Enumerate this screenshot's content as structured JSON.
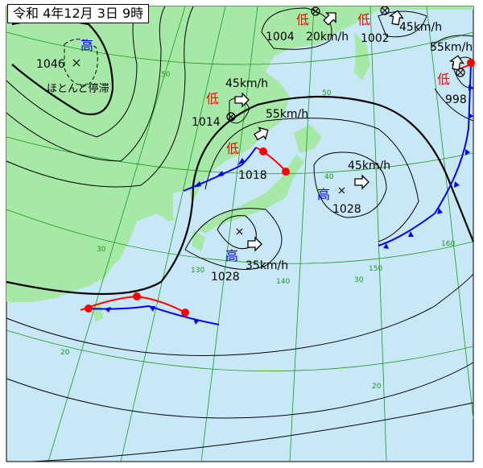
{
  "title": "令和 4年12月 3日 9時",
  "colors": {
    "sea": "#c8e8f8",
    "land": "#a6e8a6",
    "grid": "#1a9a1a",
    "high": "#0000ff",
    "low": "#ff0000",
    "warm_front": "#ff0000",
    "cold_front": "#0000ff"
  },
  "systems": [
    {
      "type": "high",
      "symbol": "高",
      "pressure": "1046",
      "note": "ほとんど停滞"
    },
    {
      "type": "low",
      "symbol": "低",
      "pressure": "1014",
      "speed": "45km/h"
    },
    {
      "type": "low",
      "symbol": "低",
      "pressure": "1018",
      "speed": "55km/h"
    },
    {
      "type": "low",
      "symbol": "低",
      "pressure": "1004",
      "speed": "20km/h"
    },
    {
      "type": "low",
      "symbol": "低",
      "pressure": "1002",
      "speed": "45km/h"
    },
    {
      "type": "low",
      "symbol": "低",
      "pressure": "998",
      "speed": "55km/h"
    },
    {
      "type": "high",
      "symbol": "高",
      "pressure": "1028",
      "speed": "45km/h"
    },
    {
      "type": "high",
      "symbol": "高",
      "pressure": "1028",
      "speed": "35km/h"
    }
  ],
  "grid_labels": {
    "lat": [
      "50",
      "40",
      "30",
      "20"
    ],
    "lon": [
      "130",
      "140",
      "150",
      "160"
    ]
  }
}
